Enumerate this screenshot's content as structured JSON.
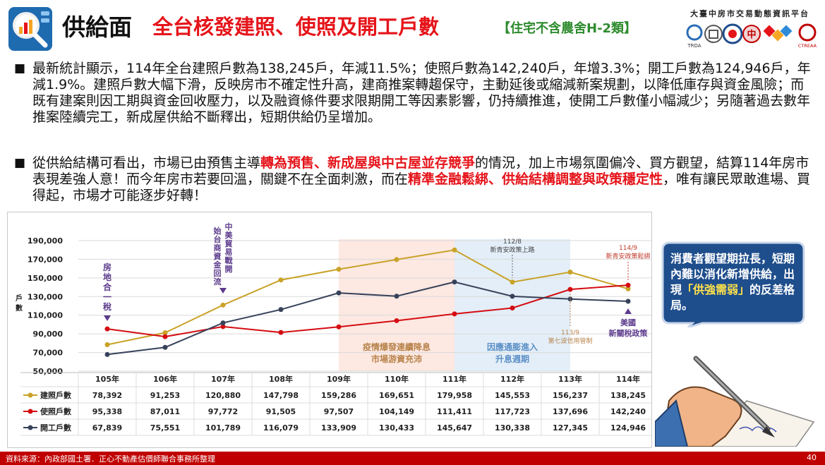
{
  "header": {
    "title_main": "供給面",
    "title_sub": "全台核發建照、使照及開工戶數",
    "title_note": "【住宅不含農舍H-2類】",
    "platform": "大臺中房市交易動態資訊平台",
    "partner_logo_label": "TRDA",
    "partner_logo_label2": "CTREAA"
  },
  "bullets": [
    {
      "seg1": "最新統計顯示，114年全台建照戶數為138,245戶，年減11.5%；使照戶數為142,240戶，年增3.3%；開工戶數為124,946戶，年減1.9%。建照戶數大幅下滑，反映房市不確定性升高，建商推案轉趨保守，主動延後或縮減新案規劃，以降低庫存與資金風險；而既有建案則因工期與資金回收壓力，以及融資條件要求限期開工等因素影響，仍持續推進，使開工戶數僅小幅減少；另隨著過去數年推案陸續完工，新成屋供給不斷釋出，短期供給仍呈增加。"
    },
    {
      "seg1": "從供給結構可看出，市場已由預售主導",
      "hl1": "轉為預售、新成屋與中古屋並存競爭",
      "seg2": "的情況，加上市場氛圍偏冷、買方觀望，結算114年房市表現差強人意！而今年房市若要回溫，關鍵不在全面刺激，而在",
      "hl2": "精準金融鬆綁、供給結構調整與政策穩定性",
      "seg3": "，唯有讓民眾敢進場、買得起，市場才可能逐步好轉！"
    }
  ],
  "chart_data": {
    "type": "line",
    "categories": [
      "105年",
      "106年",
      "107年",
      "108年",
      "109年",
      "110年",
      "111年",
      "112年",
      "113年",
      "114年"
    ],
    "ylim": [
      50000,
      190000
    ],
    "yticks": [
      50000,
      70000,
      90000,
      110000,
      130000,
      150000,
      170000,
      190000
    ],
    "ytick_labels": [
      "50,000",
      "70,000",
      "90,000",
      "110,000",
      "130,000",
      "150,000",
      "170,000",
      "190,000"
    ],
    "ylabel": "戶數",
    "series": [
      {
        "name": "建照戶數",
        "color": "#c9a227",
        "values": [
          78392,
          91253,
          120880,
          147798,
          159286,
          169651,
          179958,
          145553,
          156237,
          138245
        ],
        "labels": [
          "78,392",
          "91,253",
          "120,880",
          "147,798",
          "159,286",
          "169,651",
          "179,958",
          "145,553",
          "156,237",
          "138,245"
        ]
      },
      {
        "name": "使照戶數",
        "color": "#d40d12",
        "values": [
          95338,
          87011,
          97772,
          91505,
          97507,
          104149,
          111411,
          117723,
          137696,
          142240
        ],
        "labels": [
          "95,338",
          "87,011",
          "97,772",
          "91,505",
          "97,507",
          "104,149",
          "111,411",
          "117,723",
          "137,696",
          "142,240"
        ]
      },
      {
        "name": "開工戶數",
        "color": "#37425a",
        "values": [
          67839,
          75551,
          101789,
          116079,
          133909,
          130433,
          145647,
          130338,
          127345,
          124946
        ],
        "labels": [
          "67,839",
          "75,551",
          "101,789",
          "116,079",
          "133,909",
          "130,433",
          "145,647",
          "130,338",
          "127,345",
          "124,946"
        ]
      }
    ],
    "shaded_regions": [
      {
        "from": "109年",
        "to": "111年",
        "label1": "疫情爆發連續降息",
        "label2": "市場游資充沛",
        "color": "#fde8e2",
        "text_color": "#b8834a"
      },
      {
        "from": "111年",
        "to": "113年",
        "label1": "因應通膨進入",
        "label2": "升息週期",
        "color": "#e3eef8",
        "text_color": "#5b8fc6"
      }
    ],
    "annotations": {
      "house_land": "房地合一稅",
      "trade_war": "中美貿易戰開始台商資金回流",
      "us_tariff1": "美國",
      "us_tariff2": "新關稅政策",
      "a112_date": "112/8",
      "a112_text": "新青安政策上路",
      "a113_date": "113/9",
      "a113_text": "第七波信用管制",
      "a114_date": "114/9",
      "a114_text": "新青安政策鬆綁"
    }
  },
  "callout": {
    "line1": "消費者觀望期拉長，短期內難以消化新增供給，出現",
    "highlight": "「供強需弱」",
    "line2": "的反差格局。"
  },
  "footer": {
    "source": "資料來源：內政部國土署．正心不動產估價師聯合事務所整理",
    "page": "40"
  },
  "colors": {
    "accent_red": "#e5141a",
    "note_green": "#2e8b2e",
    "callout_blue": "#1f4e8c",
    "footer_red": "#c00000"
  }
}
